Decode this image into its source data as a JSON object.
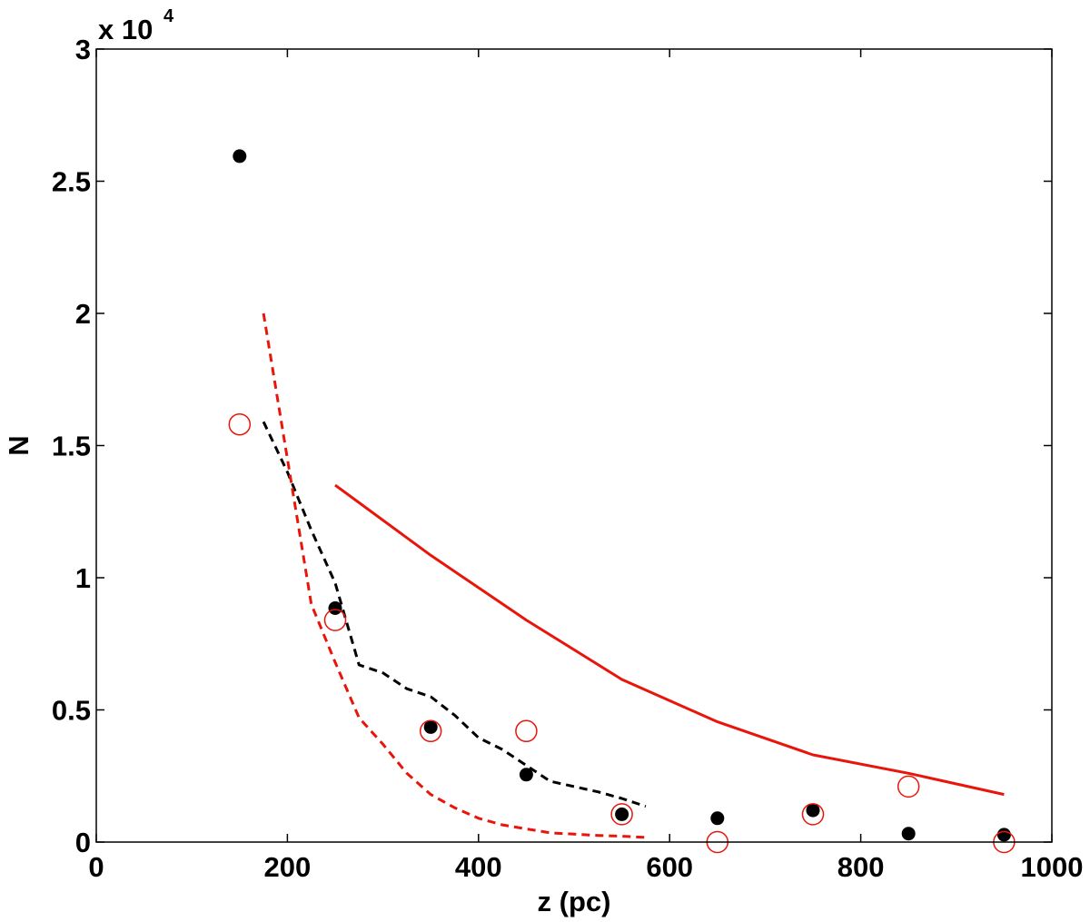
{
  "chart_data": {
    "type": "scatter",
    "xlabel": "z (pc)",
    "ylabel": "N",
    "xlim": [
      0,
      1000
    ],
    "ylim": [
      0,
      30000
    ],
    "x_ticks": [
      0,
      200,
      400,
      600,
      800,
      1000
    ],
    "x_tick_labels": [
      "0",
      "200",
      "400",
      "600",
      "800",
      "1000"
    ],
    "y_ticks": [
      0,
      5000,
      10000,
      15000,
      20000,
      25000,
      30000
    ],
    "y_tick_labels": [
      "0",
      "0.5",
      "1",
      "1.5",
      "2",
      "2.5",
      "3"
    ],
    "y_multiplier_base": "x 10",
    "y_multiplier_exponent": "4",
    "grid": false,
    "series": [
      {
        "kind": "points",
        "marker": "filled-circle",
        "color": "#000000",
        "x": [
          150,
          250,
          350,
          450,
          550,
          650,
          750,
          850,
          950
        ],
        "y": [
          25950,
          8850,
          4350,
          2550,
          1050,
          900,
          1200,
          320,
          280
        ]
      },
      {
        "kind": "points",
        "marker": "open-circle",
        "color": "#e8150b",
        "x": [
          150,
          250,
          350,
          450,
          550,
          650,
          750,
          850,
          950
        ],
        "y": [
          15800,
          8400,
          4200,
          4200,
          1050,
          0,
          1050,
          2100,
          0
        ]
      },
      {
        "kind": "line",
        "style": "solid",
        "color": "#e8150b",
        "x": [
          250,
          350,
          450,
          550,
          650,
          750,
          850,
          950
        ],
        "y": [
          13500,
          10850,
          8400,
          6150,
          4550,
          3300,
          2600,
          1800
        ]
      },
      {
        "kind": "line",
        "style": "dashed",
        "color": "#000000",
        "x": [
          175,
          200,
          225,
          250,
          275,
          300,
          325,
          350,
          375,
          400,
          425,
          450,
          475,
          500,
          525,
          550,
          575
        ],
        "y": [
          15900,
          14000,
          11800,
          9800,
          6700,
          6400,
          5800,
          5500,
          4800,
          3950,
          3500,
          2900,
          2300,
          2100,
          1900,
          1650,
          1350
        ]
      },
      {
        "kind": "line",
        "style": "dashed",
        "color": "#e8150b",
        "x": [
          175,
          200,
          225,
          250,
          275,
          300,
          325,
          350,
          375,
          400,
          425,
          450,
          475,
          500,
          525,
          550,
          575
        ],
        "y": [
          20000,
          14500,
          9000,
          6800,
          4700,
          3700,
          2600,
          1800,
          1300,
          900,
          650,
          500,
          350,
          300,
          250,
          220,
          180
        ]
      }
    ]
  }
}
